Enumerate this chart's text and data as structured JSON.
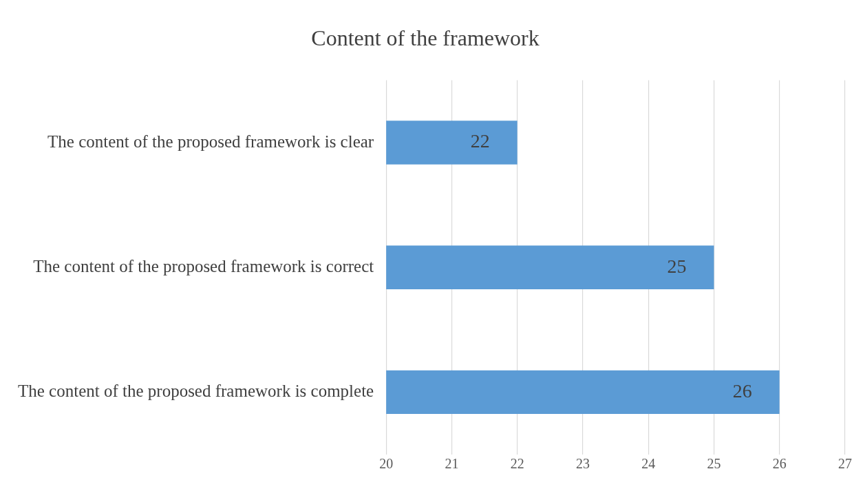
{
  "chart_data": {
    "type": "bar",
    "orientation": "horizontal",
    "title": "Content of the framework",
    "categories": [
      "The content of the proposed framework is clear",
      "The content of the proposed framework is correct",
      "The content of the proposed framework is complete"
    ],
    "values": [
      22,
      25,
      26
    ],
    "color": "#5b9bd5",
    "xlim": [
      20,
      27
    ],
    "xticks": [
      20,
      21,
      22,
      23,
      24,
      25,
      26,
      27
    ],
    "grid": "x",
    "data_labels": true
  }
}
